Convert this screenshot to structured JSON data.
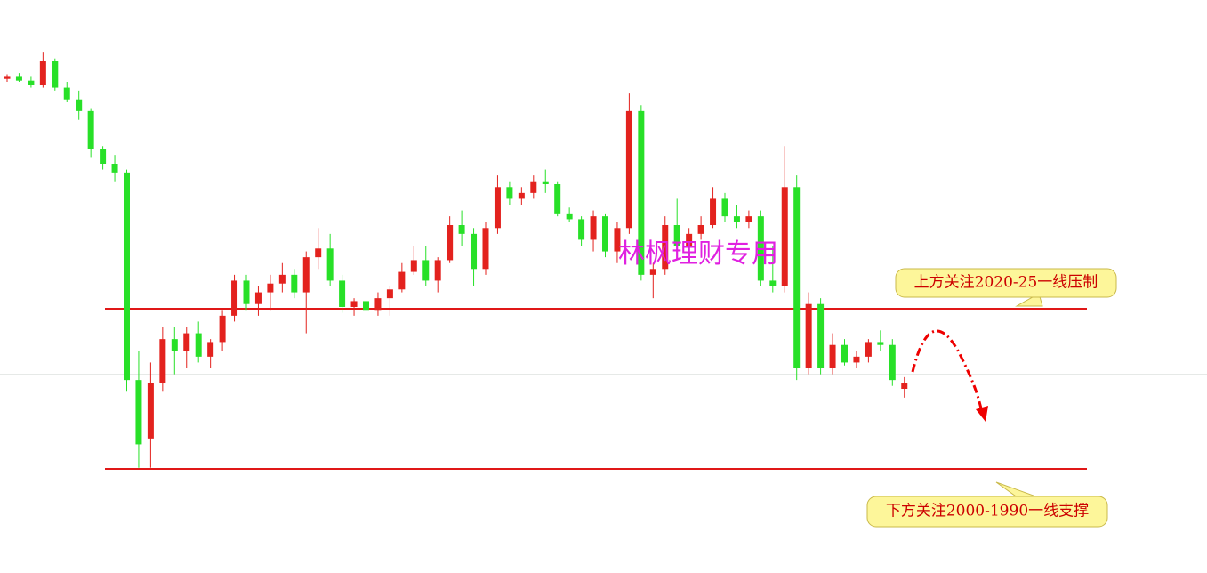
{
  "chart_data": {
    "type": "candlestick",
    "up_color": "#e3221e",
    "down_color": "#28e028",
    "ylim": [
      1977,
      2075
    ],
    "open": [
      2061.5,
      2062,
      2061.2,
      2060.5,
      2064.5,
      2060,
      2058,
      2056,
      2049.5,
      2047,
      2045.5,
      2010,
      2000,
      2009.5,
      2017,
      2015,
      2018,
      2014,
      2016.5,
      2021,
      2027,
      2023,
      2025,
      2026.5,
      2028,
      2025,
      2031,
      2032.5,
      2027,
      2022.5,
      2023.5,
      2022,
      2024,
      2025.5,
      2028.5,
      2030.5,
      2027,
      2030.5,
      2036.5,
      2035,
      2029,
      2036,
      2043,
      2041,
      2042,
      2044,
      2043.5,
      2038.5,
      2037.5,
      2034,
      2038,
      2032,
      2036,
      2056,
      2028,
      2029,
      2036.5,
      2033,
      2035,
      2036.5,
      2041,
      2038,
      2037,
      2038,
      2027,
      2026,
      2043,
      2012,
      2023,
      2012,
      2016,
      2013,
      2014,
      2016.5,
      2016,
      2008.5
    ],
    "high": [
      2062.3,
      2062.5,
      2062,
      2066,
      2065,
      2061,
      2059.5,
      2056.5,
      2050,
      2048.5,
      2046,
      2015,
      2013,
      2019,
      2019,
      2019,
      2020,
      2017,
      2022,
      2028,
      2028,
      2026,
      2028,
      2030,
      2029,
      2032,
      2036,
      2035,
      2028,
      2024,
      2025,
      2025,
      2026,
      2030,
      2033,
      2033,
      2031,
      2038,
      2039,
      2036,
      2037,
      2045,
      2044,
      2043,
      2045,
      2046,
      2044,
      2039.5,
      2038,
      2039,
      2038.5,
      2037,
      2059,
      2057,
      2030,
      2038,
      2041,
      2036,
      2038,
      2043,
      2042,
      2040,
      2039,
      2039,
      2033,
      2050,
      2045,
      2025,
      2024,
      2018,
      2017,
      2015,
      2017,
      2018.5,
      2017,
      2010.5
    ],
    "low": [
      2061,
      2061,
      2060,
      2060,
      2059.5,
      2057.5,
      2054.5,
      2048,
      2046,
      2044,
      2008,
      1995,
      1995,
      2008,
      2011,
      2012,
      2013,
      2012,
      2015,
      2020,
      2022,
      2021,
      2022,
      2025,
      2024,
      2018,
      2029,
      2026,
      2021.5,
      2021,
      2021,
      2021,
      2021,
      2025,
      2028,
      2026,
      2025,
      2030,
      2033,
      2026,
      2028,
      2035,
      2040,
      2040,
      2041,
      2042,
      2038,
      2037,
      2033,
      2032,
      2031,
      2030,
      2035,
      2027,
      2024,
      2028,
      2032,
      2032,
      2034,
      2036,
      2037,
      2036,
      2036,
      2026,
      2025,
      2025,
      2010,
      2011,
      2011,
      2011,
      2012.5,
      2012,
      2013,
      2015,
      2009,
      2007
    ],
    "close": [
      2062,
      2061.2,
      2060.5,
      2064.5,
      2060,
      2058,
      2056,
      2049.5,
      2047,
      2045.5,
      2010,
      1999,
      2009.5,
      2017,
      2015,
      2018,
      2014,
      2016.5,
      2021,
      2027,
      2023,
      2025,
      2026.5,
      2028,
      2025,
      2031,
      2032.5,
      2027,
      2022.5,
      2023.5,
      2022,
      2024,
      2025.5,
      2028.5,
      2030.5,
      2027,
      2030.5,
      2036.5,
      2035,
      2029,
      2036,
      2043,
      2041,
      2042,
      2044,
      2043.5,
      2038.5,
      2037.5,
      2034,
      2038,
      2032,
      2036,
      2056,
      2028,
      2029,
      2036.5,
      2033,
      2035,
      2036.5,
      2041,
      2038,
      2037,
      2038,
      2027,
      2026,
      2043,
      2012,
      2023,
      2012,
      2016,
      2013,
      2014,
      2016.5,
      2016,
      2010,
      2009.5
    ],
    "price_line": 2010.9,
    "levels": [
      2022.2,
      1994.8
    ],
    "watermark": "林枫理财专用",
    "annotations": [
      "上方关注2020-25一线压制",
      "下方关注2000-1990一线支撑"
    ]
  }
}
